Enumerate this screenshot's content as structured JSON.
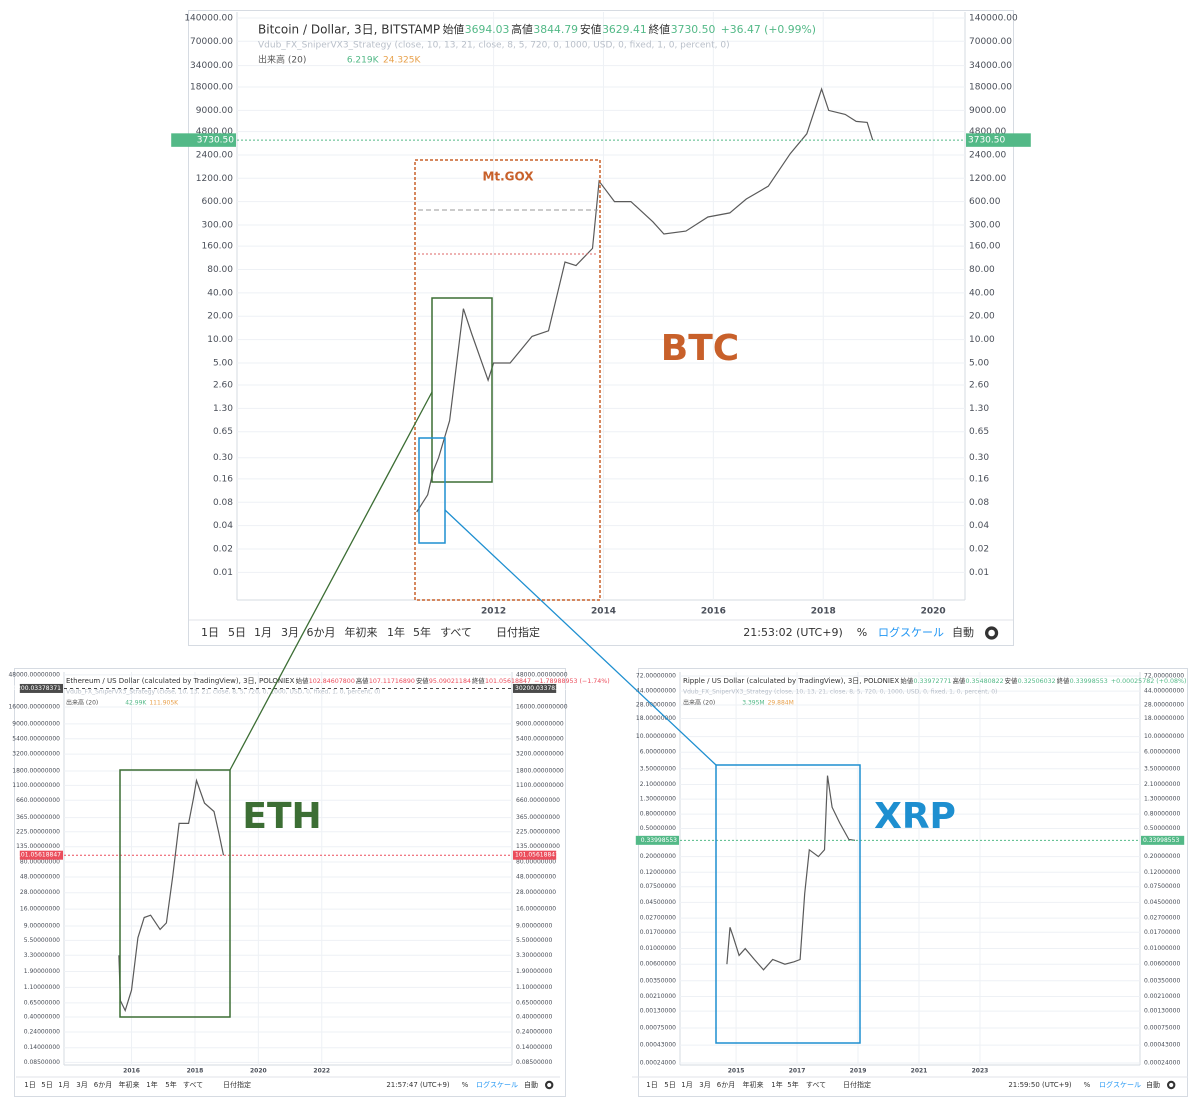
{
  "chart_data": [
    {
      "type": "line",
      "title": "Bitcoin / Dollar, 3日, BITSTAMP",
      "quote": [
        {
          "label": "始値",
          "value": "3694.03"
        },
        {
          "label": "高値",
          "value": "3844.79"
        },
        {
          "label": "安値",
          "value": "3629.41"
        },
        {
          "label": "終値",
          "value": "3730.50"
        }
      ],
      "change": "+36.47 (+0.99%)",
      "quote_color": "#53b987",
      "indicator": "Vdub_FX_SniperVX3_Strategy (close, 10, 13, 21, close, 8, 5, 720, 0, 1000, USD, 0, fixed, 1, 0, percent, 0)",
      "volume_label": "出来高 (20)",
      "volume_values": [
        "6.219K",
        "24.325K"
      ],
      "x": [
        2010.6,
        2010.8,
        2010.9,
        2011.0,
        2011.2,
        2011.45,
        2011.6,
        2011.9,
        2012.0,
        2012.3,
        2012.7,
        2013.0,
        2013.3,
        2013.5,
        2013.8,
        2013.92,
        2014.2,
        2014.5,
        2014.9,
        2015.1,
        2015.5,
        2015.9,
        2016.3,
        2016.6,
        2017.0,
        2017.4,
        2017.7,
        2017.97,
        2018.1,
        2018.4,
        2018.6,
        2018.8,
        2018.9
      ],
      "values": [
        0.06,
        0.1,
        0.2,
        0.3,
        0.9,
        25,
        12,
        3,
        5,
        5,
        11,
        13,
        100,
        90,
        150,
        1100,
        600,
        600,
        330,
        230,
        250,
        380,
        430,
        650,
        950,
        2500,
        4500,
        17000,
        9000,
        8000,
        6500,
        6300,
        3730.5
      ],
      "color": "#5a5a5a",
      "log_scale": true,
      "grid": true,
      "xlim": [
        2007.33,
        2020.58
      ],
      "xticks": [
        2012,
        2014,
        2016,
        2018,
        2020
      ],
      "ylim": [
        0.0044,
        167000
      ],
      "yticks": [
        {
          "value": 140000,
          "label": "140000.00"
        },
        {
          "value": 70000,
          "label": "70000.00"
        },
        {
          "value": 34000,
          "label": "34000.00"
        },
        {
          "value": 18000,
          "label": "18000.00"
        },
        {
          "value": 9000,
          "label": "9000.00"
        },
        {
          "value": 4800,
          "label": "4800.00"
        },
        {
          "value": 2400,
          "label": "2400.00"
        },
        {
          "value": 1200,
          "label": "1200.00"
        },
        {
          "value": 600,
          "label": "600.00"
        },
        {
          "value": 300,
          "label": "300.00"
        },
        {
          "value": 160,
          "label": "160.00"
        },
        {
          "value": 80,
          "label": "80.00"
        },
        {
          "value": 40,
          "label": "40.00"
        },
        {
          "value": 20,
          "label": "20.00"
        },
        {
          "value": 10,
          "label": "10.00"
        },
        {
          "value": 5,
          "label": "5.00"
        },
        {
          "value": 2.6,
          "label": "2.60"
        },
        {
          "value": 1.3,
          "label": "1.30"
        },
        {
          "value": 0.65,
          "label": "0.65"
        },
        {
          "value": 0.3,
          "label": "0.30"
        },
        {
          "value": 0.16,
          "label": "0.16"
        },
        {
          "value": 0.08,
          "label": "0.08"
        },
        {
          "value": 0.04,
          "label": "0.04"
        },
        {
          "value": 0.02,
          "label": "0.02"
        },
        {
          "value": 0.01,
          "label": "0.01"
        }
      ],
      "last_price": {
        "value": 3730.5,
        "label": "3730.50"
      },
      "annotations": [
        "Mt.GOX",
        "BTC"
      ],
      "toolbar": [
        "1日",
        "5日",
        "1月",
        "3月",
        "6か月",
        "年初来",
        "1年",
        "5年",
        "すべて",
        "日付指定"
      ],
      "clock": "21:53:02 (UTC+9)",
      "toolbar_right": [
        "%",
        "ログスケール",
        "自動"
      ]
    },
    {
      "type": "line",
      "title": "Ethereum / US Dollar (calculated by TradingView), 3日, POLONIEX",
      "quote": [
        {
          "label": "始値",
          "value": "102.84607800"
        },
        {
          "label": "高値",
          "value": "107.11716890"
        },
        {
          "label": "安値",
          "value": "95.09021184"
        },
        {
          "label": "終値",
          "value": "101.05618847"
        }
      ],
      "change": "−1.78988953 (−1.74%)",
      "quote_color": "#eb4d5c",
      "indicator": "Vdub_FX_SniperVX3_Strategy (close, 10, 13, 21, close, 8, 5, 720, 0, 1000, USD, 0, fixed, 1, 0, percent, 0)",
      "volume_label": "出来高 (20)",
      "volume_values": [
        "42.99K",
        "111.905K"
      ],
      "x": [
        2015.6,
        2015.65,
        2015.8,
        2016.0,
        2016.2,
        2016.4,
        2016.6,
        2016.9,
        2017.1,
        2017.3,
        2017.5,
        2017.8,
        2017.95,
        2018.05,
        2018.3,
        2018.6,
        2018.75,
        2018.9
      ],
      "values": [
        3.3,
        0.7,
        0.5,
        1,
        6,
        12,
        13,
        8,
        10,
        50,
        300,
        300,
        700,
        1300,
        600,
        450,
        220,
        101.05618847
      ],
      "color": "#5a5a5a",
      "log_scale": true,
      "grid": true,
      "xlim": [
        2013.87,
        2028.0
      ],
      "xticks": [
        2016,
        2018,
        2020,
        2022
      ],
      "ylim": [
        0.0776,
        53000
      ],
      "yticks": [
        {
          "value": 48000,
          "label": "48000.00000000"
        },
        {
          "value": 16000,
          "label": "16000.00000000"
        },
        {
          "value": 9000,
          "label": "9000.00000000"
        },
        {
          "value": 5400,
          "label": "5400.00000000"
        },
        {
          "value": 3200,
          "label": "3200.00000000"
        },
        {
          "value": 1800,
          "label": "1800.00000000"
        },
        {
          "value": 1100,
          "label": "1100.00000000"
        },
        {
          "value": 660,
          "label": "660.00000000"
        },
        {
          "value": 365,
          "label": "365.00000000"
        },
        {
          "value": 225,
          "label": "225.00000000"
        },
        {
          "value": 135,
          "label": "135.00000000"
        },
        {
          "value": 80,
          "label": "80.00000000"
        },
        {
          "value": 48,
          "label": "48.00000000"
        },
        {
          "value": 28,
          "label": "28.00000000"
        },
        {
          "value": 16,
          "label": "16.00000000"
        },
        {
          "value": 9,
          "label": "9.00000000"
        },
        {
          "value": 5.5,
          "label": "5.50000000"
        },
        {
          "value": 3.3,
          "label": "3.30000000"
        },
        {
          "value": 1.9,
          "label": "1.90000000"
        },
        {
          "value": 1.1,
          "label": "1.10000000"
        },
        {
          "value": 0.65,
          "label": "0.65000000"
        },
        {
          "value": 0.4,
          "label": "0.40000000"
        },
        {
          "value": 0.24,
          "label": "0.24000000"
        },
        {
          "value": 0.14,
          "label": "0.14000000"
        },
        {
          "value": 0.085,
          "label": "0.08500000"
        }
      ],
      "last_price": {
        "value": 101.05618847,
        "label": "101.05618847"
      },
      "high_label": {
        "value": 30200.03378371,
        "label": "30200.03378371"
      },
      "annotations": [
        "ETH"
      ],
      "toolbar": [
        "1日",
        "5日",
        "1月",
        "3月",
        "6か月",
        "年初来",
        "1年",
        "5年",
        "すべて",
        "日付指定"
      ],
      "clock": "21:57:47 (UTC+9)",
      "toolbar_right": [
        "%",
        "ログスケール",
        "自動"
      ]
    },
    {
      "type": "line",
      "title": "Ripple / US Dollar (calculated by TradingView), 3日, POLONIEX",
      "quote": [
        {
          "label": "始値",
          "value": "0.33972771"
        },
        {
          "label": "高値",
          "value": "0.35480822"
        },
        {
          "label": "安値",
          "value": "0.32506032"
        },
        {
          "label": "終値",
          "value": "0.33998553"
        }
      ],
      "change": "+0.00025782 (+0.08%)",
      "quote_color": "#53b987",
      "indicator": "Vdub_FX_SniperVX3_Strategy (close, 10, 13, 21, close, 8, 5, 720, 0, 1000, USD, 0, fixed, 1, 0, percent, 0)",
      "volume_label": "出来高 (20)",
      "volume_values": [
        "3.395M",
        "29.884M"
      ],
      "x": [
        2014.7,
        2014.8,
        2014.9,
        2015.1,
        2015.3,
        2015.6,
        2015.9,
        2016.2,
        2016.6,
        2016.9,
        2017.1,
        2017.25,
        2017.4,
        2017.7,
        2017.9,
        2018.0,
        2018.15,
        2018.4,
        2018.7,
        2018.9
      ],
      "values": [
        0.006,
        0.02,
        0.015,
        0.008,
        0.01,
        0.007,
        0.005,
        0.007,
        0.006,
        0.0065,
        0.007,
        0.06,
        0.25,
        0.2,
        0.25,
        2.8,
        1.0,
        0.6,
        0.35,
        0.33998553
      ],
      "color": "#5a5a5a",
      "log_scale": true,
      "grid": true,
      "xlim": [
        2013.16,
        2028.25
      ],
      "xticks": [
        2015,
        2017,
        2019,
        2021,
        2023
      ],
      "ylim": [
        0.000225,
        82
      ],
      "yticks": [
        {
          "value": 72,
          "label": "72.00000000"
        },
        {
          "value": 44,
          "label": "44.00000000"
        },
        {
          "value": 28,
          "label": "28.00000000"
        },
        {
          "value": 18,
          "label": "18.00000000"
        },
        {
          "value": 10,
          "label": "10.00000000"
        },
        {
          "value": 6,
          "label": "6.00000000"
        },
        {
          "value": 3.5,
          "label": "3.50000000"
        },
        {
          "value": 2.1,
          "label": "2.10000000"
        },
        {
          "value": 1.3,
          "label": "1.30000000"
        },
        {
          "value": 0.8,
          "label": "0.80000000"
        },
        {
          "value": 0.5,
          "label": "0.50000000"
        },
        {
          "value": 0.2,
          "label": "0.20000000"
        },
        {
          "value": 0.12,
          "label": "0.12000000"
        },
        {
          "value": 0.075,
          "label": "0.07500000"
        },
        {
          "value": 0.045,
          "label": "0.04500000"
        },
        {
          "value": 0.027,
          "label": "0.02700000"
        },
        {
          "value": 0.017,
          "label": "0.01700000"
        },
        {
          "value": 0.01,
          "label": "0.01000000"
        },
        {
          "value": 0.006,
          "label": "0.00600000"
        },
        {
          "value": 0.0035,
          "label": "0.00350000"
        },
        {
          "value": 0.0021,
          "label": "0.00210000"
        },
        {
          "value": 0.0013,
          "label": "0.00130000"
        },
        {
          "value": 0.00075,
          "label": "0.00075000"
        },
        {
          "value": 0.00043,
          "label": "0.00043000"
        },
        {
          "value": 0.00024,
          "label": "0.00024000"
        }
      ],
      "last_price": {
        "value": 0.33998553,
        "label": "0.33998553"
      },
      "annotations": [
        "XRP"
      ],
      "toolbar": [
        "1日",
        "5日",
        "1月",
        "3月",
        "6か月",
        "年初来",
        "1年",
        "5年",
        "すべて",
        "日付指定"
      ],
      "clock": "21:59:50 (UTC+9)",
      "toolbar_right": [
        "%",
        "ログスケール",
        "自動"
      ]
    }
  ]
}
